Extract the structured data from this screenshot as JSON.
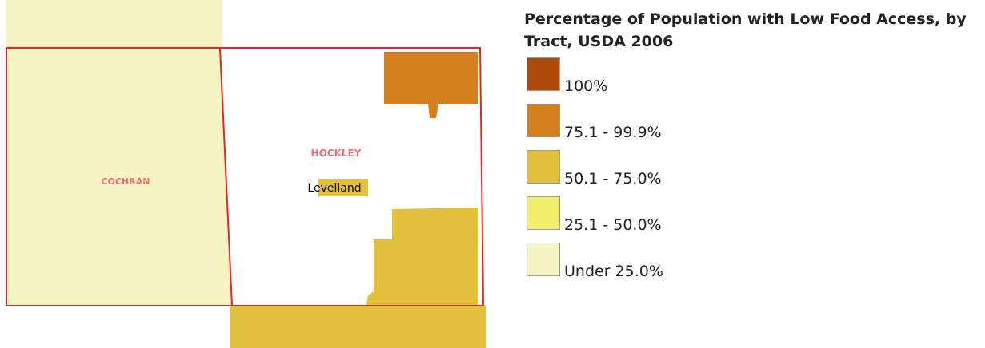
{
  "map": {
    "labels": {
      "county1": "COCHRAN",
      "county2": "HOCKLEY",
      "city": "Levelland"
    }
  },
  "legend": {
    "title": "Percentage of Population with Low Food Access, by Tract, USDA 2006",
    "items": [
      {
        "label": "100%",
        "color": "#b04a0a"
      },
      {
        "label": "75.1 - 99.9%",
        "color": "#d4801f"
      },
      {
        "label": "50.1 - 75.0%",
        "color": "#e3c03c"
      },
      {
        "label": "25.1 - 50.0%",
        "color": "#f0ee6a"
      },
      {
        "label": "Under 25.0%",
        "color": "#f5f4c2"
      }
    ]
  }
}
